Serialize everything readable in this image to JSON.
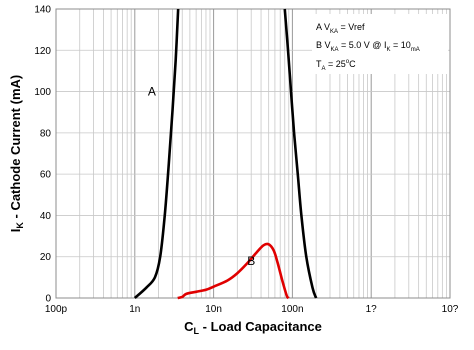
{
  "chart_data": {
    "type": "line",
    "xscale": "log",
    "xlim": [
      "1e-10",
      "1e-5"
    ],
    "ylim": [
      0,
      140
    ],
    "grid": true,
    "xlabel": {
      "main": "C",
      "sub": "L",
      "rest": " - Load Capacitance"
    },
    "ylabel": {
      "main": "I",
      "sub": "K",
      "rest": " - Cathode Current (mA)"
    },
    "x_tick_labels": [
      "100p",
      "1n",
      "10n",
      "100n",
      "1?",
      "10?"
    ],
    "x_tick_values": [
      "1e-10",
      "1e-9",
      "1e-8",
      "1e-7",
      "1e-6",
      "1e-5"
    ],
    "y_ticks": [
      0,
      20,
      40,
      60,
      80,
      100,
      120,
      140
    ],
    "legend": {
      "line1": {
        "prefix": "A V",
        "sub": "KA",
        "rest": " = Vref"
      },
      "line2": {
        "prefix": "B V",
        "sub1": "KA",
        "mid": " = 5.0 V @ I",
        "sub2": "K",
        "mid2": " = 10",
        "sub3": "mA"
      },
      "line3": {
        "prefix": "T",
        "sub": "A",
        "rest": " = 25",
        "sup": "o",
        "end": "C"
      }
    },
    "series": [
      {
        "name": "A",
        "color": "#000000",
        "points": [
          [
            "1.0e-9",
            0
          ],
          [
            "1.4e-9",
            5
          ],
          [
            "1.8e-9",
            10
          ],
          [
            "2.1e-9",
            20
          ],
          [
            "2.4e-9",
            40
          ],
          [
            "2.7e-9",
            65
          ],
          [
            "3.0e-9",
            90
          ],
          [
            "3.3e-9",
            115
          ],
          [
            "3.55e-9",
            140
          ]
        ],
        "label_at": [
          "1.65e-9",
          100
        ]
      },
      {
        "name": "A",
        "color": "#000000",
        "points": [
          [
            "8.0e-8",
            140
          ],
          [
            "8.8e-8",
            120
          ],
          [
            "9.6e-8",
            100
          ],
          [
            "1.05e-7",
            80
          ],
          [
            "1.17e-7",
            60
          ],
          [
            "1.3e-7",
            40
          ],
          [
            "1.5e-7",
            20
          ],
          [
            "1.8e-7",
            5
          ],
          [
            "2.0e-7",
            0
          ]
        ]
      },
      {
        "name": "B",
        "color": "#e00000",
        "points": [
          [
            "3.5e-9",
            0
          ],
          [
            "4.0e-9",
            0.5
          ],
          [
            "4.5e-9",
            2
          ],
          [
            "6.0e-9",
            3
          ],
          [
            "8.0e-9",
            4
          ],
          [
            "1.0e-8",
            5.5
          ],
          [
            "1.5e-8",
            8.5
          ],
          [
            "2.0e-8",
            12
          ],
          [
            "2.7e-8",
            17
          ],
          [
            "3.5e-8",
            22
          ],
          [
            "4.3e-8",
            25.5
          ],
          [
            "5.0e-8",
            26
          ],
          [
            "5.8e-8",
            23
          ],
          [
            "6.5e-8",
            17
          ],
          [
            "7.5e-8",
            8
          ],
          [
            "8.5e-8",
            1
          ],
          [
            "9.0e-8",
            0
          ]
        ],
        "label_at": [
          "3.0e-8",
          18
        ]
      }
    ]
  }
}
